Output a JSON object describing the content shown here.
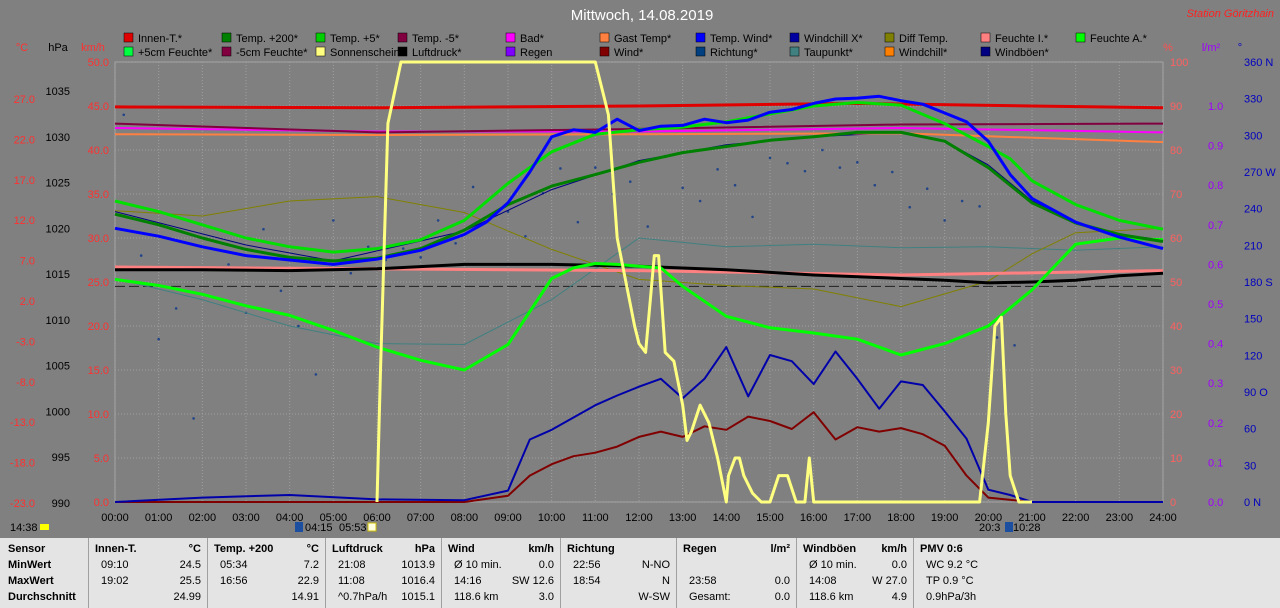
{
  "title": "Mittwoch, 14.08.2019",
  "station": "Station Göritzhain",
  "legend_row1": [
    {
      "label": "Innen-T.*",
      "color": "#e00000"
    },
    {
      "label": "Temp. +200*",
      "color": "#008000"
    },
    {
      "label": "Temp. +5*",
      "color": "#00d000"
    },
    {
      "label": "Temp. -5*",
      "color": "#800040"
    },
    {
      "label": "Bad*",
      "color": "#ff00ff"
    },
    {
      "label": "Gast Temp*",
      "color": "#ff8040"
    },
    {
      "label": "Temp. Wind*",
      "color": "#0000ff"
    },
    {
      "label": "Windchill X*",
      "color": "#0000a0"
    },
    {
      "label": "Diff Temp.",
      "color": "#808000"
    },
    {
      "label": "Feuchte I.*",
      "color": "#ff8080"
    },
    {
      "label": "Feuchte A.*",
      "color": "#00ff00"
    }
  ],
  "legend_row2": [
    {
      "label": "+5cm Feuchte*",
      "color": "#00ff40"
    },
    {
      "label": "-5cm Feuchte*",
      "color": "#800040"
    },
    {
      "label": "Sonnenschein*",
      "color": "#ffff80"
    },
    {
      "label": "Luftdruck*",
      "color": "#000000"
    },
    {
      "label": "Regen",
      "color": "#8000ff"
    },
    {
      "label": "Wind*",
      "color": "#800000"
    },
    {
      "label": "Richtung*",
      "color": "#004080"
    },
    {
      "label": "Taupunkt*",
      "color": "#408080"
    },
    {
      "label": "Windchill*",
      "color": "#ff8000"
    },
    {
      "label": "Windböen*",
      "color": "#000080"
    }
  ],
  "axis_units": {
    "temp": "°C",
    "pressure": "hPa",
    "wind": "km/h",
    "humidity": "%",
    "rain": "l/m²",
    "dir": "°"
  },
  "axes": {
    "temp_ticks": [
      "27.0",
      "22.0",
      "17.0",
      "12.0",
      "7.0",
      "2.0",
      "-3.0",
      "-8.0",
      "-13.0",
      "-18.0",
      "-23.0"
    ],
    "pressure_ticks": [
      "1035",
      "1030",
      "1025",
      "1020",
      "1015",
      "1010",
      "1005",
      "1000",
      "995",
      "990"
    ],
    "wind_ticks": [
      "50.0",
      "45.0",
      "40.0",
      "35.0",
      "30.0",
      "25.0",
      "20.0",
      "15.0",
      "10.0",
      "5.0",
      "0.0"
    ],
    "humidity_ticks": [
      "100",
      "90",
      "80",
      "70",
      "60",
      "50",
      "40",
      "30",
      "20",
      "10",
      "0"
    ],
    "rain_ticks": [
      "1.0",
      "0.9",
      "0.8",
      "0.7",
      "0.6",
      "0.5",
      "0.4",
      "0.3",
      "0.2",
      "0.1",
      "0.0"
    ],
    "dir_ticks": [
      "360 N",
      "330",
      "300",
      "270 W",
      "240",
      "210",
      "180 S",
      "150",
      "120",
      "90 O",
      "60",
      "30",
      "0 N"
    ],
    "time_ticks": [
      "00:00",
      "01:00",
      "02:00",
      "03:00",
      "04:00",
      "05:00",
      "06:00",
      "07:00",
      "08:00",
      "09:00",
      "10:00",
      "11:00",
      "12:00",
      "13:00",
      "14:00",
      "15:00",
      "16:00",
      "17:00",
      "18:00",
      "19:00",
      "20:00",
      "21:00",
      "22:00",
      "23:00",
      "24:00"
    ]
  },
  "markers": {
    "left_time": "14:38",
    "sunrise": "04:15",
    "sun_up": "05:53",
    "sunset": "20:3",
    "sun_down": "10:28"
  },
  "chart_data": {
    "type": "line",
    "title": "Mittwoch, 14.08.2019",
    "x_unit": "hour",
    "xlim": [
      0,
      24
    ],
    "ylim_wind": [
      0,
      50
    ],
    "grid": true,
    "legend_position": "top",
    "series": [
      {
        "name": "Innen-T.*",
        "axis": "wind",
        "color": "#e00000",
        "width": 3,
        "x": [
          0,
          6,
          12,
          17,
          21,
          24
        ],
        "y": [
          44.9,
          44.8,
          45.0,
          45.3,
          45.0,
          44.8
        ]
      },
      {
        "name": "Temp. +200*",
        "axis": "wind",
        "color": "#008000",
        "width": 3,
        "x": [
          0,
          1,
          2,
          3,
          4,
          5,
          6,
          7,
          8,
          9,
          10,
          11,
          12,
          13,
          14,
          15,
          16,
          17,
          18,
          19,
          20,
          21,
          22,
          23,
          24
        ],
        "y": [
          32.7,
          31.5,
          30.0,
          28.7,
          27.8,
          27.4,
          27.7,
          28.8,
          30.9,
          33.8,
          35.9,
          37.2,
          38.6,
          39.7,
          40.4,
          41.1,
          41.5,
          42.0,
          42.0,
          41.0,
          38.0,
          34.0,
          31.7,
          30.4,
          29.6
        ]
      },
      {
        "name": "Temp. +5*",
        "axis": "wind",
        "color": "#00e000",
        "width": 3,
        "x": [
          0,
          1,
          2,
          3,
          4,
          5,
          6,
          7,
          8,
          9,
          10,
          11,
          12,
          13,
          14,
          15,
          16,
          17,
          18,
          19,
          20,
          20.5,
          21,
          22,
          23,
          24
        ],
        "y": [
          34.2,
          33.0,
          31.5,
          30.0,
          29.0,
          28.4,
          28.8,
          29.8,
          32.0,
          36.2,
          39.8,
          41.8,
          42.3,
          42.6,
          43.2,
          44.1,
          45.0,
          45.4,
          45.1,
          43.0,
          40.4,
          39.0,
          36.5,
          33.8,
          32.0,
          31.0
        ]
      },
      {
        "name": "Temp. Wind*",
        "axis": "wind",
        "color": "#0000ff",
        "width": 3,
        "x": [
          0,
          1,
          2,
          3,
          4,
          5,
          6,
          7,
          8,
          8.5,
          9,
          9.5,
          10,
          10.5,
          11,
          11.5,
          12,
          12.5,
          13,
          13.5,
          14,
          14.5,
          15,
          15.5,
          16,
          16.5,
          17,
          17.5,
          18,
          18.5,
          19,
          19.5,
          20,
          20.5,
          21,
          22,
          23,
          24
        ],
        "y": [
          31.1,
          30.2,
          29.0,
          28.0,
          27.5,
          27.0,
          27.6,
          28.6,
          30.4,
          31.8,
          34.0,
          37.5,
          41.5,
          42.3,
          42.0,
          43.5,
          42.2,
          42.7,
          42.8,
          43.5,
          43.1,
          43.4,
          44.3,
          44.6,
          45.3,
          45.8,
          45.9,
          46.1,
          45.6,
          45.2,
          44.2,
          43.2,
          41.0,
          37.2,
          34.5,
          31.8,
          30.1,
          28.8
        ]
      },
      {
        "name": "Windchill X*",
        "axis": "wind",
        "color": "#000080",
        "width": 1,
        "x": [
          0,
          3,
          5,
          8,
          10,
          12,
          14,
          16,
          18,
          19,
          20,
          21,
          22,
          23,
          24
        ],
        "y": [
          33.0,
          29.2,
          27.4,
          30.8,
          35.5,
          38.8,
          40.6,
          41.5,
          42.0,
          41.0,
          38.3,
          34.2,
          31.8,
          30.4,
          29.8
        ]
      },
      {
        "name": "Temp. -5*",
        "axis": "wind",
        "color": "#800040",
        "width": 2,
        "x": [
          0,
          6,
          12,
          18,
          24
        ],
        "y": [
          43.0,
          42.0,
          42.4,
          42.9,
          43.0
        ]
      },
      {
        "name": "Bad*",
        "axis": "wind",
        "color": "#ff00ff",
        "width": 2,
        "x": [
          0,
          6,
          12,
          18,
          24
        ],
        "y": [
          42.5,
          42.1,
          42.1,
          42.5,
          42.0
        ]
      },
      {
        "name": "Gast Temp*",
        "axis": "wind",
        "color": "#ff8040",
        "width": 2,
        "x": [
          0,
          6,
          12,
          18,
          24
        ],
        "y": [
          41.8,
          41.7,
          41.8,
          41.9,
          40.9
        ]
      },
      {
        "name": "Feuchte I.*",
        "axis": "wind",
        "color": "#ff8080",
        "width": 3,
        "x": [
          0,
          6,
          12,
          18,
          24
        ],
        "y": [
          26.7,
          26.5,
          26.3,
          25.8,
          26.3
        ]
      },
      {
        "name": "Luftdruck*",
        "axis": "wind",
        "color": "#000000",
        "width": 3,
        "x": [
          0,
          2,
          4,
          6,
          8,
          10,
          12,
          14,
          16,
          18,
          19,
          20,
          21,
          22,
          23,
          24
        ],
        "y": [
          26.4,
          26.4,
          26.3,
          26.5,
          27.0,
          27.0,
          26.8,
          26.4,
          25.8,
          25.4,
          25.2,
          24.9,
          25.0,
          25.2,
          25.7,
          26.0
        ]
      },
      {
        "name": "Feuchte A.*",
        "axis": "wind",
        "color": "#00ff00",
        "width": 3,
        "x": [
          0,
          1,
          2,
          3,
          4,
          5,
          6,
          7,
          8,
          9,
          10,
          10.5,
          11,
          11.5,
          12,
          12.5,
          13,
          14,
          15,
          16,
          17,
          18,
          19,
          20,
          21,
          22,
          23,
          24
        ],
        "y": [
          25.3,
          24.6,
          23.6,
          22.3,
          21.2,
          19.5,
          17.6,
          16.1,
          15.0,
          17.9,
          25.4,
          26.6,
          27.1,
          27.0,
          26.8,
          26.6,
          24.5,
          21.1,
          19.8,
          19.2,
          18.5,
          16.7,
          18.0,
          20.0,
          24.1,
          29.3,
          30.0,
          29.8
        ]
      },
      {
        "name": "Sonnenschein*",
        "axis": "wind",
        "color": "#ffff80",
        "width": 3,
        "x": [
          6.0,
          6.08,
          6.25,
          6.55,
          7.0,
          8.0,
          10.0,
          11.0,
          11.2,
          11.3,
          11.5,
          11.7,
          11.9,
          12.0,
          12.15,
          12.35,
          12.45,
          12.6,
          12.8,
          13.0,
          13.1,
          13.2,
          13.4,
          13.6,
          13.8,
          14.0,
          14.05,
          14.2,
          14.3,
          14.4,
          14.6,
          14.8,
          15.0,
          15.2,
          15.4,
          15.6,
          15.8,
          15.9,
          16.0,
          16.5,
          19.8,
          20.0,
          20.15,
          20.3,
          20.4,
          20.5,
          20.7,
          21.0
        ],
        "y": [
          0,
          15,
          43,
          50,
          50,
          50,
          50,
          50,
          46,
          44,
          30,
          25,
          20,
          18,
          17,
          28,
          28,
          17,
          16,
          11,
          7,
          8,
          11,
          9,
          5,
          0,
          3,
          5,
          5,
          3,
          1,
          0,
          0,
          3,
          3,
          0,
          0,
          5,
          0,
          0,
          0,
          9,
          20,
          21,
          10,
          3,
          0,
          0
        ]
      },
      {
        "name": "Windböen*",
        "axis": "wind",
        "color": "#0000aa",
        "width": 2,
        "x": [
          0,
          2,
          4,
          6,
          8,
          9,
          9.5,
          10,
          10.5,
          11,
          11.5,
          12,
          12.5,
          13,
          13.5,
          14,
          14.5,
          15,
          15.5,
          16,
          16.5,
          17,
          17.5,
          18,
          18.5,
          19,
          19.5,
          20,
          20.5,
          21,
          22,
          23,
          24
        ],
        "y": [
          0,
          0.5,
          0.8,
          0.3,
          0.2,
          1.3,
          7.1,
          8.2,
          9.6,
          11.0,
          12.1,
          13.1,
          14.0,
          11.8,
          14.0,
          17.6,
          12.0,
          16.7,
          16.0,
          13.4,
          17.1,
          14.0,
          10.6,
          13.7,
          13.3,
          10.3,
          7.2,
          1.4,
          0.8,
          0,
          0,
          0,
          0
        ]
      },
      {
        "name": "Wind*",
        "axis": "wind",
        "color": "#800000",
        "width": 2,
        "x": [
          0,
          8,
          9,
          9.5,
          10,
          10.5,
          11,
          11.5,
          12,
          12.5,
          13,
          13.5,
          14,
          14.5,
          15,
          15.5,
          16,
          16.5,
          17,
          17.5,
          18,
          18.5,
          19,
          19.5,
          20,
          21,
          24
        ],
        "y": [
          0,
          0,
          0.7,
          3.0,
          4.3,
          5.2,
          5.6,
          6.3,
          7.4,
          8.0,
          7.4,
          8.6,
          8.2,
          9.7,
          9.2,
          8.3,
          10.2,
          7.1,
          8.5,
          8.0,
          8.4,
          7.7,
          6.4,
          3.0,
          0.5,
          0,
          0
        ]
      },
      {
        "name": "Taupunkt*",
        "axis": "wind",
        "color": "#408080",
        "width": 1,
        "x": [
          0,
          2,
          4,
          6,
          8,
          10,
          12,
          14,
          16,
          18,
          20,
          22,
          24
        ],
        "y": [
          25.4,
          23.0,
          20.0,
          18.0,
          17.9,
          23.0,
          30.0,
          29.0,
          29.3,
          28.9,
          29.0,
          28.6,
          29.0
        ]
      },
      {
        "name": "Diff Temp.",
        "axis": "wind",
        "color": "#808000",
        "width": 1,
        "x": [
          0,
          2,
          4,
          6,
          8,
          10,
          12,
          14,
          16,
          18,
          20,
          21,
          22,
          24
        ],
        "y": [
          33.1,
          32.5,
          34.2,
          34.7,
          32.9,
          28.7,
          25.3,
          24.6,
          24.2,
          22.2,
          25.1,
          28.2,
          30.6,
          31.1
        ]
      },
      {
        "name": "Richtung*",
        "axis": "wind",
        "color": "#224488",
        "width": 0,
        "style": "dots",
        "x": [
          0.2,
          0.6,
          1.0,
          1.4,
          1.8,
          2.2,
          2.6,
          3.0,
          3.4,
          3.8,
          4.2,
          4.6,
          5.0,
          5.4,
          5.8,
          6.2,
          6.6,
          7.0,
          7.4,
          7.8,
          8.2,
          8.6,
          9.0,
          9.4,
          9.8,
          10.2,
          10.6,
          11.0,
          11.4,
          11.8,
          12.2,
          12.6,
          13.0,
          13.4,
          13.8,
          14.2,
          14.6,
          15.0,
          15.4,
          15.8,
          16.2,
          16.6,
          17.0,
          17.4,
          17.8,
          18.2,
          18.6,
          19.0,
          19.4,
          19.8,
          20.2,
          20.6
        ],
        "y": [
          44.0,
          28.0,
          18.5,
          22.0,
          9.5,
          28.8,
          27.0,
          21.5,
          31.0,
          24.0,
          20.0,
          14.5,
          32.0,
          26.0,
          29.0,
          27.5,
          28.8,
          27.8,
          32.0,
          29.4,
          35.8,
          32.5,
          33.0,
          30.2,
          35.1,
          37.9,
          31.8,
          38.0,
          35.0,
          36.4,
          31.3,
          39.3,
          35.7,
          34.2,
          37.8,
          36.0,
          32.4,
          39.1,
          38.5,
          37.6,
          40.0,
          38.0,
          38.6,
          36.0,
          37.5,
          33.5,
          35.6,
          32.0,
          34.2,
          33.6,
          18.7,
          17.8
        ]
      }
    ]
  },
  "table": {
    "row_labels": [
      "Sensor",
      "MinWert",
      "MaxWert",
      "Durchschnitt"
    ],
    "columns": [
      {
        "header": "Innen-T.",
        "unit": "°C",
        "rows": [
          [
            "09:10",
            "24.5"
          ],
          [
            "19:02",
            "25.5"
          ],
          [
            "",
            "24.99"
          ]
        ]
      },
      {
        "header": "Temp. +200",
        "unit": "°C",
        "rows": [
          [
            "05:34",
            "7.2"
          ],
          [
            "16:56",
            "22.9"
          ],
          [
            "",
            "14.91"
          ]
        ]
      },
      {
        "header": "Luftdruck",
        "unit": "hPa",
        "rows": [
          [
            "21:08",
            "1013.9"
          ],
          [
            "11:08",
            "1016.4"
          ],
          [
            "^0.7hPa/h",
            "1015.1"
          ]
        ]
      },
      {
        "header": "Wind",
        "unit": "km/h",
        "rows": [
          [
            "Ø 10 min.",
            "0.0"
          ],
          [
            "14:16",
            "SW 12.6"
          ],
          [
            "118.6 km",
            "3.0"
          ]
        ]
      },
      {
        "header": "Richtung",
        "unit": "",
        "rows": [
          [
            "22:56",
            "N-NO"
          ],
          [
            "18:54",
            "N"
          ],
          [
            "",
            "W-SW"
          ]
        ]
      },
      {
        "header": "Regen",
        "unit": "l/m²",
        "rows": [
          [
            "",
            ""
          ],
          [
            "23:58",
            "0.0"
          ],
          [
            "Gesamt:",
            "0.0"
          ]
        ]
      },
      {
        "header": "Windböen",
        "unit": "km/h",
        "rows": [
          [
            "Ø 10 min.",
            "0.0"
          ],
          [
            "14:08",
            "W 27.0"
          ],
          [
            "118.6 km",
            "4.9"
          ]
        ]
      },
      {
        "header": "PMV 0:6",
        "unit": "",
        "rows": [
          [
            "WC 9.2 °C",
            ""
          ],
          [
            "TP 0.9 °C",
            ""
          ],
          [
            "0.9hPa/3h",
            ""
          ]
        ]
      }
    ]
  }
}
